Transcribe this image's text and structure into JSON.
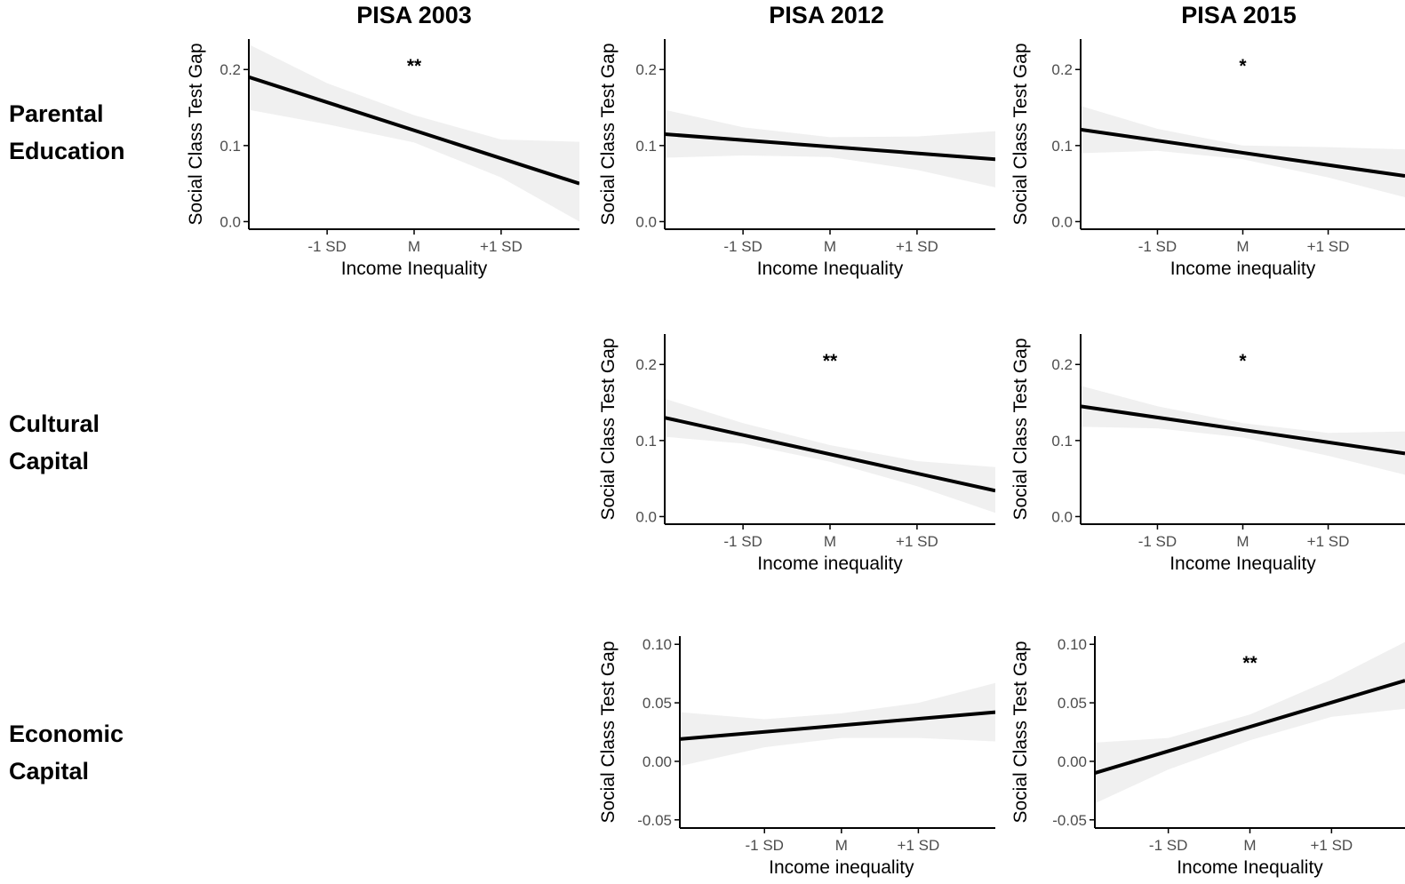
{
  "column_titles": [
    "PISA 2003",
    "PISA 2012",
    "PISA 2015"
  ],
  "row_labels": [
    {
      "line1": "Parental",
      "line2": "Education"
    },
    {
      "line1": "Cultural",
      "line2": "Capital"
    },
    {
      "line1": "Economic",
      "line2": "Capital"
    }
  ],
  "colors": {
    "line": "#000000",
    "band": "#ebebeb",
    "axis": "#000000",
    "tick_text": "#4d4d4d"
  },
  "chart_data": [
    {
      "type": "line",
      "id": "p2003-parental",
      "row": 0,
      "col": 0,
      "ylabel": "Social Class Test Gap",
      "xlabel": "Income Inequality",
      "x_ticks": [
        "-1 SD",
        "M",
        "+1 SD"
      ],
      "x_tick_values": [
        -1,
        0,
        1
      ],
      "xlim": [
        -1.9,
        1.9
      ],
      "ylim": [
        -0.01,
        0.24
      ],
      "y_ticks": [
        0.0,
        0.1,
        0.2
      ],
      "y_tick_labels": [
        "0.0",
        "0.1",
        "0.2"
      ],
      "significance": "**",
      "line": {
        "x": [
          -1.9,
          1.9
        ],
        "y": [
          0.19,
          0.05
        ]
      },
      "ci_band": {
        "x": [
          -1.9,
          -1,
          0,
          1,
          1.9
        ],
        "lower": [
          0.147,
          0.128,
          0.104,
          0.058,
          0.0
        ],
        "upper": [
          0.233,
          0.182,
          0.14,
          0.108,
          0.105
        ]
      }
    },
    {
      "type": "line",
      "id": "p2012-parental",
      "row": 0,
      "col": 1,
      "ylabel": "Social Class Test Gap",
      "xlabel": "Income Inequality",
      "x_ticks": [
        "-1 SD",
        "M",
        "+1 SD"
      ],
      "x_tick_values": [
        -1,
        0,
        1
      ],
      "xlim": [
        -1.9,
        1.9
      ],
      "ylim": [
        -0.01,
        0.24
      ],
      "y_ticks": [
        0.0,
        0.1,
        0.2
      ],
      "y_tick_labels": [
        "0.0",
        "0.1",
        "0.2"
      ],
      "significance": "",
      "line": {
        "x": [
          -1.9,
          1.9
        ],
        "y": [
          0.115,
          0.082
        ]
      },
      "ci_band": {
        "x": [
          -1.9,
          -1,
          0,
          1,
          1.9
        ],
        "lower": [
          0.084,
          0.087,
          0.085,
          0.068,
          0.045
        ],
        "upper": [
          0.147,
          0.124,
          0.111,
          0.112,
          0.119
        ]
      }
    },
    {
      "type": "line",
      "id": "p2015-parental",
      "row": 0,
      "col": 2,
      "ylabel": "Social Class Test Gap",
      "xlabel": "Income inequality",
      "x_ticks": [
        "-1 SD",
        "M",
        "+1 SD"
      ],
      "x_tick_values": [
        -1,
        0,
        1
      ],
      "xlim": [
        -1.9,
        1.9
      ],
      "ylim": [
        -0.01,
        0.24
      ],
      "y_ticks": [
        0.0,
        0.1,
        0.2
      ],
      "y_tick_labels": [
        "0.0",
        "0.1",
        "0.2"
      ],
      "significance": "*",
      "line": {
        "x": [
          -1.9,
          1.9
        ],
        "y": [
          0.121,
          0.06
        ]
      },
      "ci_band": {
        "x": [
          -1.9,
          -1,
          0,
          1,
          1.9
        ],
        "lower": [
          0.09,
          0.093,
          0.082,
          0.058,
          0.032
        ],
        "upper": [
          0.152,
          0.122,
          0.1,
          0.098,
          0.095
        ]
      }
    },
    {
      "type": "line",
      "id": "p2012-cultural",
      "row": 1,
      "col": 1,
      "ylabel": "Social Class Test Gap",
      "xlabel": "Income inequality",
      "x_ticks": [
        "-1 SD",
        "M",
        "+1 SD"
      ],
      "x_tick_values": [
        -1,
        0,
        1
      ],
      "xlim": [
        -1.9,
        1.9
      ],
      "ylim": [
        -0.01,
        0.24
      ],
      "y_ticks": [
        0.0,
        0.1,
        0.2
      ],
      "y_tick_labels": [
        "0.0",
        "0.1",
        "0.2"
      ],
      "significance": "**",
      "line": {
        "x": [
          -1.9,
          1.9
        ],
        "y": [
          0.13,
          0.034
        ]
      },
      "ci_band": {
        "x": [
          -1.9,
          -1,
          0,
          1,
          1.9
        ],
        "lower": [
          0.105,
          0.096,
          0.072,
          0.04,
          0.005
        ],
        "upper": [
          0.155,
          0.123,
          0.094,
          0.073,
          0.065
        ]
      }
    },
    {
      "type": "line",
      "id": "p2015-cultural",
      "row": 1,
      "col": 2,
      "ylabel": "Social Class Test Gap",
      "xlabel": "Income Inequality",
      "x_ticks": [
        "-1 SD",
        "M",
        "+1 SD"
      ],
      "x_tick_values": [
        -1,
        0,
        1
      ],
      "xlim": [
        -1.9,
        1.9
      ],
      "ylim": [
        -0.01,
        0.24
      ],
      "y_ticks": [
        0.0,
        0.1,
        0.2
      ],
      "y_tick_labels": [
        "0.0",
        "0.1",
        "0.2"
      ],
      "significance": "*",
      "line": {
        "x": [
          -1.9,
          1.9
        ],
        "y": [
          0.145,
          0.083
        ]
      },
      "ci_band": {
        "x": [
          -1.9,
          -1,
          0,
          1,
          1.9
        ],
        "lower": [
          0.118,
          0.116,
          0.104,
          0.08,
          0.055
        ],
        "upper": [
          0.172,
          0.145,
          0.123,
          0.11,
          0.112
        ]
      }
    },
    {
      "type": "line",
      "id": "p2012-economic",
      "row": 2,
      "col": 1,
      "ylabel": "Social Class Test Gap",
      "xlabel": "Income inequality",
      "x_ticks": [
        "-1 SD",
        "M",
        "+1 SD"
      ],
      "x_tick_values": [
        -1,
        0,
        1
      ],
      "xlim": [
        -2.1,
        2.0
      ],
      "ylim": [
        -0.057,
        0.107
      ],
      "y_ticks": [
        -0.05,
        0.0,
        0.05,
        0.1
      ],
      "y_tick_labels": [
        "-0.05",
        "0.00",
        "0.05",
        "0.10"
      ],
      "significance": "",
      "line": {
        "x": [
          -2.1,
          2.0
        ],
        "y": [
          0.019,
          0.042
        ]
      },
      "ci_band": {
        "x": [
          -2.1,
          -1,
          0,
          1,
          2.0
        ],
        "lower": [
          -0.004,
          0.012,
          0.02,
          0.02,
          0.017
        ],
        "upper": [
          0.042,
          0.036,
          0.041,
          0.05,
          0.067
        ]
      }
    },
    {
      "type": "line",
      "id": "p2015-economic",
      "row": 2,
      "col": 2,
      "ylabel": "Social Class Test Gap",
      "xlabel": "Income Inequality",
      "x_ticks": [
        "-1 SD",
        "M",
        "+1 SD"
      ],
      "x_tick_values": [
        -1,
        0,
        1
      ],
      "xlim": [
        -1.9,
        1.9
      ],
      "ylim": [
        -0.057,
        0.107
      ],
      "y_ticks": [
        -0.05,
        0.0,
        0.05,
        0.1
      ],
      "y_tick_labels": [
        "-0.05",
        "0.00",
        "0.05",
        "0.10"
      ],
      "significance": "**",
      "line": {
        "x": [
          -1.9,
          1.9
        ],
        "y": [
          -0.01,
          0.069
        ]
      },
      "ci_band": {
        "x": [
          -1.9,
          -1,
          0,
          1,
          1.9
        ],
        "lower": [
          -0.036,
          -0.007,
          0.018,
          0.038,
          0.045
        ],
        "upper": [
          0.016,
          0.02,
          0.04,
          0.07,
          0.102
        ]
      }
    }
  ]
}
